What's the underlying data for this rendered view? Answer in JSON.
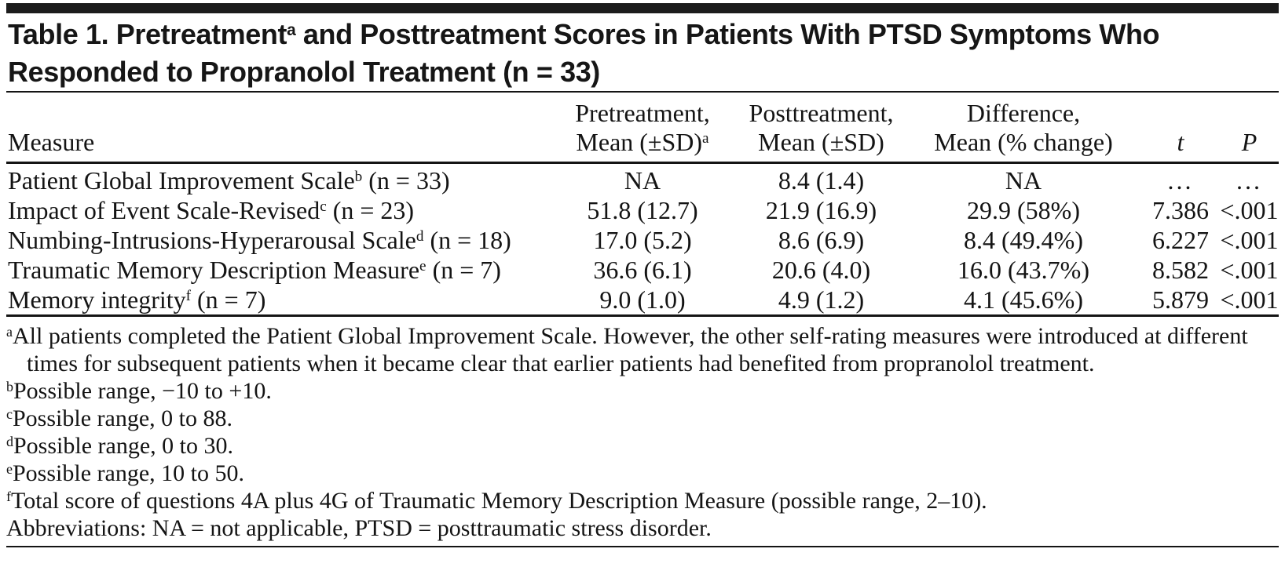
{
  "title": {
    "prefix": "Table 1. Pretreatment",
    "sup": "a",
    "suffix": " and Posttreatment Scores in Patients With PTSD Symptoms Who Responded to Propranolol Treatment (n = 33)"
  },
  "table": {
    "headers": {
      "measure": "Measure",
      "pre_line1": "Pretreatment,",
      "pre_line2": "Mean (±SD)",
      "pre_sup": "a",
      "post_line1": "Posttreatment,",
      "post_line2": "Mean (±SD)",
      "diff_line1": "Difference,",
      "diff_line2": "Mean (% change)",
      "t": "t",
      "p": "P"
    },
    "rows": [
      {
        "measure": "Patient Global Improvement Scale",
        "sup": "b",
        "n": " (n = 33)",
        "pre": "NA",
        "post": "8.4 (1.4)",
        "diff": "NA",
        "t": "...",
        "p": "..."
      },
      {
        "measure": "Impact of Event Scale-Revised",
        "sup": "c",
        "n": " (n = 23)",
        "pre": "51.8 (12.7)",
        "post": "21.9 (16.9)",
        "diff": "29.9 (58%)",
        "t": "7.386",
        "p": "<.001"
      },
      {
        "measure": "Numbing-Intrusions-Hyperarousal Scale",
        "sup": "d",
        "n": " (n = 18)",
        "pre": "17.0 (5.2)",
        "post": "8.6 (6.9)",
        "diff": "8.4 (49.4%)",
        "t": "6.227",
        "p": "<.001"
      },
      {
        "measure": "Traumatic Memory Description Measure",
        "sup": "e",
        "n": " (n = 7)",
        "pre": "36.6 (6.1)",
        "post": "20.6 (4.0)",
        "diff": "16.0 (43.7%)",
        "t": "8.582",
        "p": "<.001"
      },
      {
        "measure": "Memory integrity",
        "sup": "f",
        "n": " (n = 7)",
        "pre": "9.0 (1.0)",
        "post": "4.9 (1.2)",
        "diff": "4.1 (45.6%)",
        "t": "5.879",
        "p": "<.001"
      }
    ]
  },
  "footnotes": [
    {
      "sup": "a",
      "text": "All patients completed the Patient Global Improvement Scale. However, the other self-rating measures were introduced at different times for subsequent patients when it became clear that earlier patients had benefited from propranolol treatment."
    },
    {
      "sup": "b",
      "text": "Possible range, −10 to +10."
    },
    {
      "sup": "c",
      "text": "Possible range, 0 to 88."
    },
    {
      "sup": "d",
      "text": "Possible range, 0 to 30."
    },
    {
      "sup": "e",
      "text": "Possible range, 10 to 50."
    },
    {
      "sup": "f",
      "text": "Total score of questions 4A plus 4G of Traumatic Memory Description Measure (possible range, 2–10)."
    },
    {
      "sup": "",
      "text": "Abbreviations: NA = not applicable, PTSD = posttraumatic stress disorder."
    }
  ],
  "colors": {
    "background": "#ffffff",
    "text": "#141414",
    "rule": "#141414",
    "top_bar": "#1c1c1c"
  }
}
